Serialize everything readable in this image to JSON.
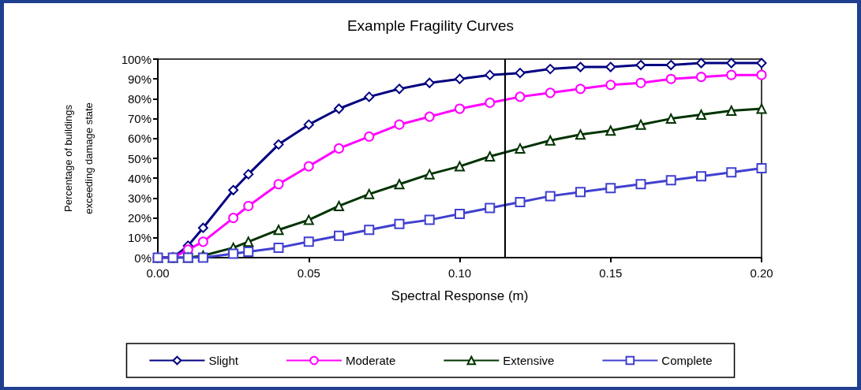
{
  "chart_data": {
    "type": "line",
    "title": "Example Fragility Curves",
    "xlabel": "Spectral Response (m)",
    "ylabel": "Percentage of buildings\nexceeding damage state",
    "x": [
      0,
      0.005,
      0.01,
      0.015,
      0.025,
      0.03,
      0.04,
      0.05,
      0.06,
      0.07,
      0.08,
      0.09,
      0.1,
      0.11,
      0.12,
      0.13,
      0.14,
      0.15,
      0.16,
      0.17,
      0.18,
      0.19,
      0.2
    ],
    "series": [
      {
        "name": "Slight",
        "color": "#000080",
        "marker": "diamond",
        "values": [
          0,
          0,
          6,
          15,
          34,
          42,
          57,
          67,
          75,
          81,
          85,
          88,
          90,
          92,
          93,
          95,
          96,
          96,
          97,
          97,
          98,
          98,
          98
        ]
      },
      {
        "name": "Moderate",
        "color": "#ff00ff",
        "marker": "circle",
        "values": [
          0,
          0,
          4,
          8,
          20,
          26,
          37,
          46,
          55,
          61,
          67,
          71,
          75,
          78,
          81,
          83,
          85,
          87,
          88,
          90,
          91,
          92,
          92
        ]
      },
      {
        "name": "Extensive",
        "color": "#003300",
        "marker": "triangle",
        "values": [
          0,
          0,
          0,
          1,
          5,
          8,
          14,
          19,
          26,
          32,
          37,
          42,
          46,
          51,
          55,
          59,
          62,
          64,
          67,
          70,
          72,
          74,
          75
        ]
      },
      {
        "name": "Complete",
        "color": "#4040d0",
        "marker": "square",
        "values": [
          0,
          0,
          0,
          0,
          2,
          3,
          5,
          8,
          11,
          14,
          17,
          19,
          22,
          25,
          28,
          31,
          33,
          35,
          37,
          39,
          41,
          43,
          45
        ]
      }
    ],
    "xlim": [
      0,
      0.2
    ],
    "xticks": [
      {
        "value": 0,
        "label": "0.00"
      },
      {
        "value": 0.05,
        "label": "0.05"
      },
      {
        "value": 0.1,
        "label": "0.10"
      },
      {
        "value": 0.15,
        "label": "0.15"
      },
      {
        "value": 0.2,
        "label": "0.20"
      }
    ],
    "ylim": [
      0,
      100
    ],
    "yticks": [
      {
        "value": 0,
        "label": "0%"
      },
      {
        "value": 10,
        "label": "10%"
      },
      {
        "value": 20,
        "label": "20%"
      },
      {
        "value": 30,
        "label": "30%"
      },
      {
        "value": 40,
        "label": "40%"
      },
      {
        "value": 50,
        "label": "50%"
      },
      {
        "value": 60,
        "label": "60%"
      },
      {
        "value": 70,
        "label": "70%"
      },
      {
        "value": 80,
        "label": "80%"
      },
      {
        "value": 90,
        "label": "90%"
      },
      {
        "value": 100,
        "label": "100%"
      }
    ],
    "ref_lines": [
      {
        "axis": "x",
        "value": 0.115,
        "color": "#000000",
        "line_style": "solid"
      }
    ],
    "grid": false,
    "legend": "bottom",
    "line_style": "solid"
  }
}
